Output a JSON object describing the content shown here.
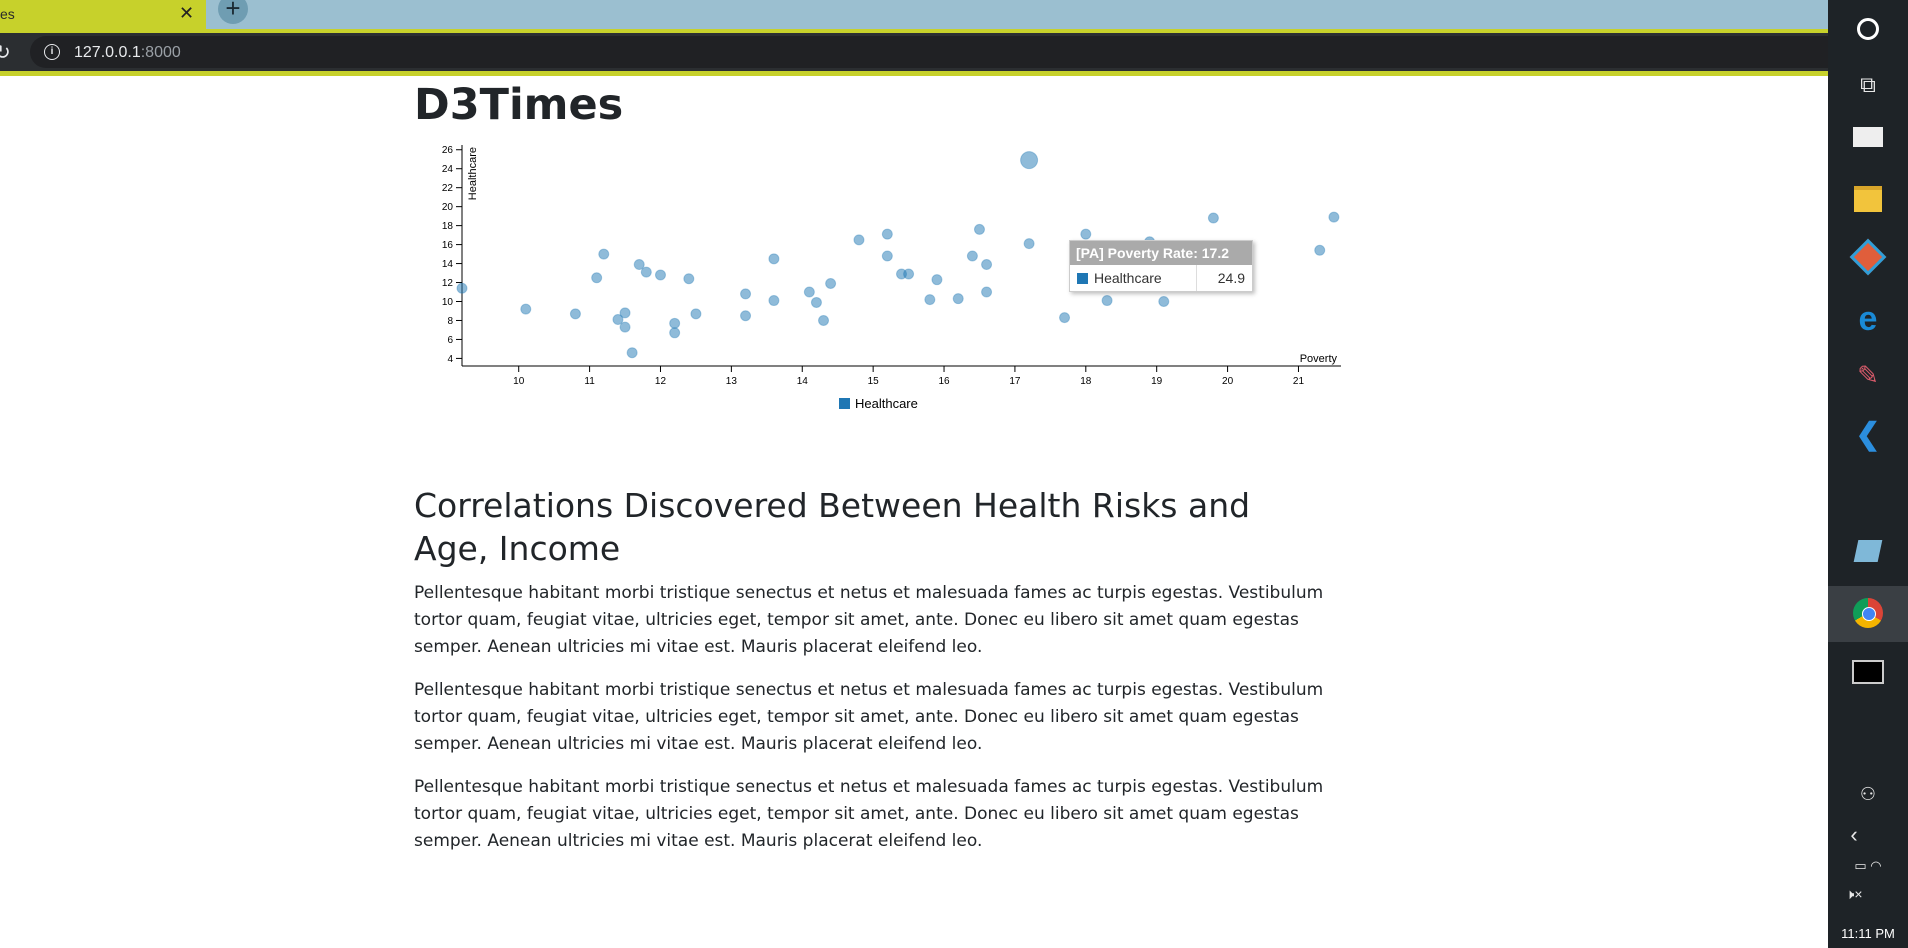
{
  "browser": {
    "tab_title": "es",
    "tab_close": "✕",
    "new_tab": "+",
    "url_host": "127.0.0.1",
    "url_port": ":8000",
    "reload_icon": "reload-icon",
    "info_icon": "info-icon"
  },
  "page": {
    "title": "D3Times",
    "heading": "Correlations Discovered Between Health Risks and Age, Income",
    "paragraphs": [
      "Pellentesque habitant morbi tristique senectus et netus et malesuada fames ac turpis egestas. Vestibulum tortor quam, feugiat vitae, ultricies eget, tempor sit amet, ante. Donec eu libero sit amet quam egestas semper. Aenean ultricies mi vitae est. Mauris placerat eleifend leo.",
      "Pellentesque habitant morbi tristique senectus et netus et malesuada fames ac turpis egestas. Vestibulum tortor quam, feugiat vitae, ultricies eget, tempor sit amet, ante. Donec eu libero sit amet quam egestas semper. Aenean ultricies mi vitae est. Mauris placerat eleifend leo.",
      "Pellentesque habitant morbi tristique senectus et netus et malesuada fames ac turpis egestas. Vestibulum tortor quam, feugiat vitae, ultricies eget, tempor sit amet, ante. Donec eu libero sit amet quam egestas semper. Aenean ultricies mi vitae est. Mauris placerat eleifend leo."
    ]
  },
  "tooltip": {
    "title": "[PA] Poverty Rate: 17.2",
    "series": "Healthcare",
    "value": "24.9"
  },
  "chart_data": {
    "type": "scatter",
    "xlabel": "Poverty",
    "ylabel": "Healthcare",
    "xlim": [
      9.2,
      21.6
    ],
    "ylim": [
      3.2,
      26.5
    ],
    "xticks": [
      10,
      11,
      12,
      13,
      14,
      15,
      16,
      17,
      18,
      19,
      20,
      21
    ],
    "yticks": [
      4,
      6,
      8,
      10,
      12,
      14,
      16,
      18,
      20,
      22,
      24,
      26
    ],
    "legend": "bottom-center",
    "series": [
      {
        "name": "Healthcare",
        "color": "#1f77b4",
        "points": [
          [
            9.2,
            11.4
          ],
          [
            10.1,
            9.2
          ],
          [
            10.8,
            8.7
          ],
          [
            11.1,
            12.5
          ],
          [
            11.2,
            15.0
          ],
          [
            11.4,
            8.1
          ],
          [
            11.5,
            8.8
          ],
          [
            11.5,
            7.3
          ],
          [
            11.6,
            4.6
          ],
          [
            11.7,
            13.9
          ],
          [
            11.8,
            13.1
          ],
          [
            12.0,
            12.8
          ],
          [
            12.2,
            7.7
          ],
          [
            12.2,
            6.7
          ],
          [
            12.4,
            12.4
          ],
          [
            12.5,
            8.7
          ],
          [
            13.2,
            10.8
          ],
          [
            13.2,
            8.5
          ],
          [
            13.6,
            14.5
          ],
          [
            13.6,
            10.1
          ],
          [
            14.1,
            11.0
          ],
          [
            14.2,
            9.9
          ],
          [
            14.3,
            8.0
          ],
          [
            14.4,
            11.9
          ],
          [
            14.8,
            16.5
          ],
          [
            15.2,
            17.1
          ],
          [
            15.2,
            14.8
          ],
          [
            15.4,
            12.9
          ],
          [
            15.5,
            12.9
          ],
          [
            15.8,
            10.2
          ],
          [
            15.9,
            12.3
          ],
          [
            16.2,
            10.3
          ],
          [
            16.4,
            14.8
          ],
          [
            16.5,
            17.6
          ],
          [
            16.6,
            13.9
          ],
          [
            16.6,
            11.0
          ],
          [
            17.2,
            24.9
          ],
          [
            17.2,
            16.1
          ],
          [
            17.7,
            8.3
          ],
          [
            18.0,
            17.1
          ],
          [
            18.2,
            14.4
          ],
          [
            18.3,
            14.2
          ],
          [
            18.3,
            10.1
          ],
          [
            18.9,
            16.3
          ],
          [
            19.1,
            10.0
          ],
          [
            19.3,
            13.9
          ],
          [
            19.8,
            18.8
          ],
          [
            21.3,
            15.4
          ],
          [
            21.5,
            18.9
          ]
        ]
      }
    ],
    "highlight": [
      17.2,
      24.9
    ]
  },
  "taskbar": {
    "taskview_icon": "⧉",
    "edge_icon": "e",
    "paint_icon": "✎",
    "vscode_icon": "❮",
    "people_icon": "⚇",
    "chevron_icon": "‹",
    "battery_icon": "▭ ◠",
    "volume_icon": "🕨×",
    "clock": "11:11 PM"
  }
}
